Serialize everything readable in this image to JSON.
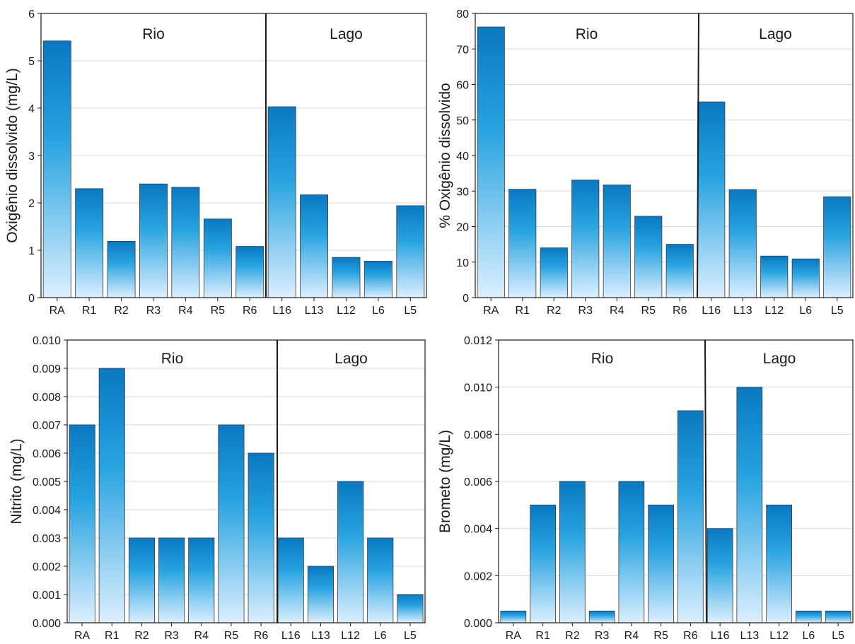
{
  "colors": {
    "bar_top": "#0a78c2",
    "bar_mid": "#27a3e0",
    "bar_bottom": "#dcefff",
    "bar_stroke": "#3a3a3a",
    "grid": "#d9d9d9",
    "axis": "#1a1a1a"
  },
  "chart_data": [
    {
      "type": "bar",
      "ylabel": "Oxigênio dissolvido (mg/L)",
      "ylim": [
        0,
        6
      ],
      "yticks": [
        "0",
        "1",
        "2",
        "3",
        "4",
        "5",
        "6"
      ],
      "grid": true,
      "categories": [
        "RA",
        "R1",
        "R2",
        "R3",
        "R4",
        "R5",
        "R6",
        "L16",
        "L13",
        "L12",
        "L6",
        "L5"
      ],
      "values": [
        5.42,
        2.3,
        1.19,
        2.4,
        2.33,
        1.66,
        1.08,
        4.03,
        2.17,
        0.85,
        0.77,
        1.94
      ],
      "regions": [
        "Rio",
        "Lago"
      ],
      "divider_after": 6
    },
    {
      "type": "bar",
      "ylabel": "% Oxigênio dissolvido",
      "ylim": [
        0,
        80
      ],
      "yticks": [
        "0",
        "10",
        "20",
        "30",
        "40",
        "50",
        "60",
        "70",
        "80"
      ],
      "grid": true,
      "categories": [
        "RA",
        "R1",
        "R2",
        "R3",
        "R4",
        "R5",
        "R6",
        "L16",
        "L13",
        "L12",
        "L6",
        "L5"
      ],
      "values": [
        76.2,
        30.5,
        14.0,
        33.1,
        31.7,
        22.9,
        15.0,
        55.1,
        30.4,
        11.7,
        10.9,
        28.4
      ],
      "regions": [
        "Rio",
        "Lago"
      ],
      "divider_after": 6
    },
    {
      "type": "bar",
      "ylabel": "Nitrito (mg/L)",
      "ylim": [
        0,
        0.01
      ],
      "yticks": [
        "0.000",
        "0.001",
        "0.002",
        "0.003",
        "0.004",
        "0.005",
        "0.006",
        "0.007",
        "0.008",
        "0.009",
        "0.010"
      ],
      "grid": true,
      "categories": [
        "RA",
        "R1",
        "R2",
        "R3",
        "R4",
        "R5",
        "R6",
        "L16",
        "L13",
        "L12",
        "L6",
        "L5"
      ],
      "values": [
        0.007,
        0.009,
        0.003,
        0.003,
        0.003,
        0.007,
        0.006,
        0.003,
        0.002,
        0.005,
        0.003,
        0.001
      ],
      "regions": [
        "Rio",
        "Lago"
      ],
      "divider_after": 6
    },
    {
      "type": "bar",
      "ylabel": "Brometo (mg/L)",
      "ylim": [
        0,
        0.012
      ],
      "yticks": [
        "0.000",
        "0.002",
        "0.004",
        "0.006",
        "0.008",
        "0.010",
        "0.012"
      ],
      "grid": true,
      "categories": [
        "RA",
        "R1",
        "R2",
        "R3",
        "R4",
        "R5",
        "R6",
        "L16",
        "L13",
        "L12",
        "L6",
        "L5"
      ],
      "values": [
        0.0005,
        0.005,
        0.006,
        0.0005,
        0.006,
        0.005,
        0.009,
        0.004,
        0.01,
        0.005,
        0.0005,
        0.0005
      ],
      "regions": [
        "Rio",
        "Lago"
      ],
      "divider_after": 6
    }
  ]
}
